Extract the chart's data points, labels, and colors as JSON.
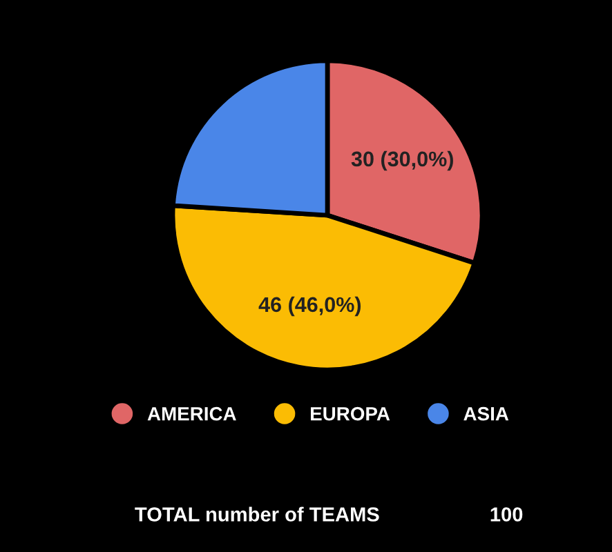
{
  "chart_data": {
    "type": "pie",
    "categories": [
      "AMERICA",
      "EUROPA",
      "ASIA"
    ],
    "values": [
      30,
      46,
      24
    ],
    "colors": [
      "#e06666",
      "#fbbc04",
      "#4a86e8"
    ],
    "value_labels": [
      "30 (30,0%)",
      "46 (46,0%)",
      null
    ],
    "legend": "bottom",
    "annotations": [
      "TOTAL number of TEAMS",
      "100"
    ]
  }
}
